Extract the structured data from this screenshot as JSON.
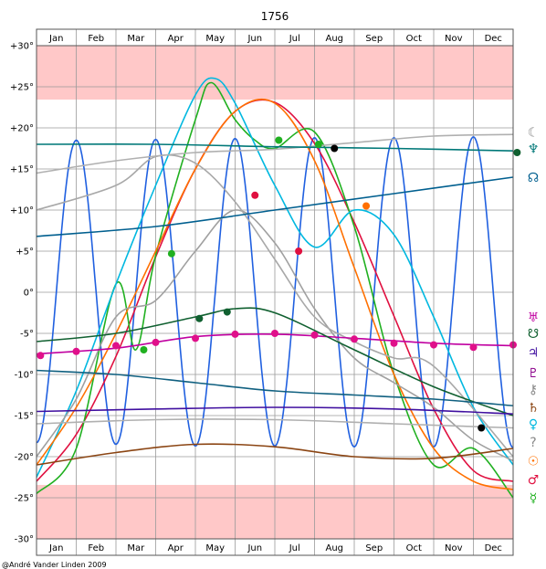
{
  "chart_data": {
    "type": "line",
    "title": "1756",
    "months": [
      "Jan",
      "Feb",
      "Mar",
      "Apr",
      "May",
      "Jun",
      "Jul",
      "Aug",
      "Sep",
      "Oct",
      "Nov",
      "Dec"
    ],
    "ylim": [
      -30,
      30
    ],
    "yticks": [
      {
        "v": 30,
        "label": "+30°"
      },
      {
        "v": 25,
        "label": "+25°"
      },
      {
        "v": 20,
        "label": "+20°"
      },
      {
        "v": 15,
        "label": "+15°"
      },
      {
        "v": 10,
        "label": "+10°"
      },
      {
        "v": 5,
        "label": "+5°"
      },
      {
        "v": 0,
        "label": "0°"
      },
      {
        "v": -5,
        "label": "-5°"
      },
      {
        "v": -10,
        "label": "-10°"
      },
      {
        "v": -15,
        "label": "-15°"
      },
      {
        "v": -20,
        "label": "-20°"
      },
      {
        "v": -25,
        "label": "-25°"
      },
      {
        "v": -30,
        "label": "-30°"
      }
    ],
    "shaded_bands": [
      [
        23.44,
        30
      ],
      [
        -30,
        -23.44
      ]
    ],
    "band_color": "#ffc8c8",
    "x_unit": "month (0 = Jan 1, 12 = Dec 31)",
    "series": [
      {
        "id": "moon",
        "color": "#2060e0",
        "points": [
          [
            0,
            -18.3
          ],
          [
            1,
            18.5
          ],
          [
            2,
            -18.5
          ],
          [
            3,
            18.6
          ],
          [
            4,
            -18.7
          ],
          [
            5,
            18.7
          ],
          [
            6,
            -18.7
          ],
          [
            7,
            18.8
          ],
          [
            8,
            -18.8
          ],
          [
            9,
            18.8
          ],
          [
            10,
            -18.8
          ],
          [
            11,
            18.9
          ],
          [
            12,
            -18.9
          ]
        ]
      },
      {
        "id": "sun",
        "color": "#e01040",
        "points": [
          [
            0,
            -23
          ],
          [
            1,
            -17.3
          ],
          [
            2,
            -7.8
          ],
          [
            3,
            4.3
          ],
          [
            4,
            15
          ],
          [
            5,
            22
          ],
          [
            6,
            23.1
          ],
          [
            7,
            18.1
          ],
          [
            8,
            8.5
          ],
          [
            9,
            -2.9
          ],
          [
            10,
            -14.2
          ],
          [
            11,
            -21.7
          ],
          [
            12,
            -23
          ]
        ]
      },
      {
        "id": "mercury",
        "color": "#20b020",
        "points": [
          [
            0,
            -24.5
          ],
          [
            1,
            -19
          ],
          [
            2,
            1
          ],
          [
            2.5,
            -7
          ],
          [
            3,
            4.5
          ],
          [
            4,
            21
          ],
          [
            4.4,
            25.5
          ],
          [
            5,
            21
          ],
          [
            5.5,
            18.5
          ],
          [
            6,
            17.5
          ],
          [
            7,
            19.5
          ],
          [
            8,
            8
          ],
          [
            9,
            -10
          ],
          [
            10,
            -21
          ],
          [
            11,
            -19
          ],
          [
            12,
            -25
          ]
        ]
      },
      {
        "id": "venus",
        "color": "#00b8e0",
        "points": [
          [
            0,
            -22.5
          ],
          [
            1,
            -12
          ],
          [
            2,
            1
          ],
          [
            3,
            13
          ],
          [
            4,
            24
          ],
          [
            4.5,
            26
          ],
          [
            5,
            23
          ],
          [
            6,
            13
          ],
          [
            7,
            5.5
          ],
          [
            8,
            10
          ],
          [
            9,
            7
          ],
          [
            10,
            -3
          ],
          [
            11,
            -14
          ],
          [
            12,
            -21
          ]
        ]
      },
      {
        "id": "mars",
        "color": "#ff7000",
        "points": [
          [
            0,
            -21
          ],
          [
            1,
            -14
          ],
          [
            2,
            -5
          ],
          [
            3,
            5
          ],
          [
            4,
            15
          ],
          [
            5,
            22
          ],
          [
            6,
            23
          ],
          [
            7,
            16
          ],
          [
            8,
            3
          ],
          [
            9,
            -10
          ],
          [
            10,
            -19
          ],
          [
            11,
            -23
          ],
          [
            12,
            -24
          ]
        ]
      },
      {
        "id": "jupiter",
        "color": "#a0a0a0",
        "points": [
          [
            0,
            -20
          ],
          [
            1,
            -13
          ],
          [
            2,
            -3
          ],
          [
            3,
            -1
          ],
          [
            4,
            5
          ],
          [
            5,
            10
          ],
          [
            6,
            6
          ],
          [
            7,
            -2
          ],
          [
            8,
            -8
          ],
          [
            9,
            -11
          ],
          [
            10,
            -14
          ],
          [
            11,
            -18
          ],
          [
            12,
            -20.5
          ]
        ]
      },
      {
        "id": "saturn",
        "color": "#a8a8a8",
        "points": [
          [
            0,
            10
          ],
          [
            2,
            13
          ],
          [
            3,
            16.5
          ],
          [
            4,
            15.7
          ],
          [
            5,
            11
          ],
          [
            6,
            4
          ],
          [
            7,
            -3
          ],
          [
            8,
            -6
          ],
          [
            9,
            -8
          ],
          [
            10,
            -9
          ],
          [
            12,
            -20
          ]
        ]
      },
      {
        "id": "uranus",
        "color": "#b0b0b0",
        "points": [
          [
            0,
            14.5
          ],
          [
            2,
            16
          ],
          [
            4,
            17
          ],
          [
            6,
            17.4
          ],
          [
            8,
            18.2
          ],
          [
            10,
            19
          ],
          [
            12,
            19.2
          ]
        ]
      },
      {
        "id": "neptune",
        "color": "#007878",
        "points": [
          [
            0,
            18
          ],
          [
            3,
            18
          ],
          [
            6,
            17.7
          ],
          [
            9,
            17.5
          ],
          [
            12,
            17.2
          ]
        ]
      },
      {
        "id": "node",
        "color": "#005f8f",
        "points": [
          [
            0,
            6.8
          ],
          [
            3,
            8
          ],
          [
            6,
            10
          ],
          [
            9,
            12
          ],
          [
            12,
            14
          ]
        ]
      },
      {
        "id": "pluto",
        "color": "#c000a0",
        "points": [
          [
            0,
            -7.5
          ],
          [
            2,
            -6.8
          ],
          [
            4,
            -5.4
          ],
          [
            6,
            -5.1
          ],
          [
            8,
            -5.6
          ],
          [
            10,
            -6.2
          ],
          [
            12,
            -6.5
          ]
        ]
      },
      {
        "id": "ceres",
        "color": "#106030",
        "points": [
          [
            0,
            -6
          ],
          [
            2,
            -5
          ],
          [
            4,
            -3
          ],
          [
            5,
            -2
          ],
          [
            6,
            -2.5
          ],
          [
            8,
            -7
          ],
          [
            10,
            -11.5
          ],
          [
            12,
            -15
          ]
        ]
      },
      {
        "id": "pallas",
        "color": "#4010a0",
        "points": [
          [
            0,
            -14.5
          ],
          [
            3,
            -14.2
          ],
          [
            6,
            -14
          ],
          [
            9,
            -14.2
          ],
          [
            12,
            -14.8
          ]
        ]
      },
      {
        "id": "juno",
        "color": "#8b4513",
        "points": [
          [
            0,
            -21
          ],
          [
            2,
            -19.5
          ],
          [
            4,
            -18.5
          ],
          [
            6,
            -18.8
          ],
          [
            8,
            -20
          ],
          [
            10,
            -20.2
          ],
          [
            12,
            -19
          ]
        ]
      },
      {
        "id": "vesta",
        "color": "#106080",
        "points": [
          [
            0,
            -9.5
          ],
          [
            2,
            -10
          ],
          [
            4,
            -11
          ],
          [
            6,
            -12
          ],
          [
            8,
            -12.5
          ],
          [
            10,
            -13
          ],
          [
            12,
            -13.8
          ]
        ]
      },
      {
        "id": "chiron",
        "color": "#b0b0b0",
        "points": [
          [
            0,
            -16
          ],
          [
            3,
            -15.5
          ],
          [
            6,
            -15.5
          ],
          [
            9,
            -16
          ],
          [
            12,
            -16.5
          ]
        ]
      }
    ],
    "markers": [
      {
        "month": 0.1,
        "dec": -7.7,
        "color": "#e0108a"
      },
      {
        "month": 1,
        "dec": -7.2,
        "color": "#e0108a"
      },
      {
        "month": 2,
        "dec": -6.5,
        "color": "#e0108a"
      },
      {
        "month": 3,
        "dec": -6.1,
        "color": "#e0108a"
      },
      {
        "month": 4,
        "dec": -5.6,
        "color": "#e0108a"
      },
      {
        "month": 5,
        "dec": -5.1,
        "color": "#e0108a"
      },
      {
        "month": 6,
        "dec": -5.0,
        "color": "#e0108a"
      },
      {
        "month": 7,
        "dec": -5.2,
        "color": "#e0108a"
      },
      {
        "month": 8,
        "dec": -5.7,
        "color": "#e0108a"
      },
      {
        "month": 9,
        "dec": -6.2,
        "color": "#e0108a"
      },
      {
        "month": 10,
        "dec": -6.4,
        "color": "#e0108a"
      },
      {
        "month": 11,
        "dec": -6.7,
        "color": "#e0108a"
      },
      {
        "month": 12,
        "dec": -6.4,
        "color": "#e0108a"
      },
      {
        "month": 5.5,
        "dec": 11.8,
        "color": "#e01040"
      },
      {
        "month": 6.6,
        "dec": 5,
        "color": "#e01040"
      },
      {
        "month": 6.1,
        "dec": 18.5,
        "color": "#20b020"
      },
      {
        "month": 7.1,
        "dec": 18,
        "color": "#20b020"
      },
      {
        "month": 3.4,
        "dec": 4.7,
        "color": "#20b020"
      },
      {
        "month": 2.7,
        "dec": -7,
        "color": "#20b020"
      },
      {
        "month": 8.3,
        "dec": 10.5,
        "color": "#ff7000"
      },
      {
        "month": 7.5,
        "dec": 17.5,
        "color": "#000000"
      },
      {
        "month": 11.2,
        "dec": -16.5,
        "color": "#000000"
      },
      {
        "month": 4.1,
        "dec": -3.2,
        "color": "#106030"
      },
      {
        "month": 4.8,
        "dec": -2.4,
        "color": "#106030"
      },
      {
        "month": 12.1,
        "dec": 17,
        "color": "#106030"
      }
    ],
    "glyphs_right": [
      {
        "id": "moon-glyph",
        "char": "☾",
        "dec": 19.5,
        "color": "#888888"
      },
      {
        "id": "neptune-glyph",
        "char": "♆",
        "dec": 17.5,
        "color": "#007878"
      },
      {
        "id": "node-glyph",
        "char": "☊",
        "dec": 14,
        "color": "#005f8f"
      },
      {
        "id": "uranus-glyph",
        "char": "♅",
        "dec": -3,
        "color": "#c000a0"
      },
      {
        "id": "descending-node-glyph",
        "char": "☋",
        "dec": -5,
        "color": "#106030"
      },
      {
        "id": "jupiter-glyph",
        "char": "♃",
        "dec": -7.3,
        "color": "#4010a0"
      },
      {
        "id": "pluto-glyph",
        "char": "♇",
        "dec": -9.8,
        "color": "#8b008b"
      },
      {
        "id": "chiron-glyph",
        "char": "⚷",
        "dec": -11.8,
        "color": "#888888"
      },
      {
        "id": "saturn-glyph",
        "char": "♄",
        "dec": -14,
        "color": "#8b4513"
      },
      {
        "id": "venus-glyph",
        "char": "♀",
        "dec": -16,
        "color": "#00b8e0"
      },
      {
        "id": "unknown-glyph",
        "char": "?",
        "dec": -18.2,
        "color": "#888888"
      },
      {
        "id": "sun-glyph",
        "char": "☉",
        "dec": -20.5,
        "color": "#ff7000"
      },
      {
        "id": "mars-glyph",
        "char": "♂",
        "dec": -22.8,
        "color": "#e01040"
      },
      {
        "id": "mercury-glyph",
        "char": "☿",
        "dec": -25,
        "color": "#20b020"
      }
    ]
  },
  "credit": "@André Vander Linden 2009"
}
